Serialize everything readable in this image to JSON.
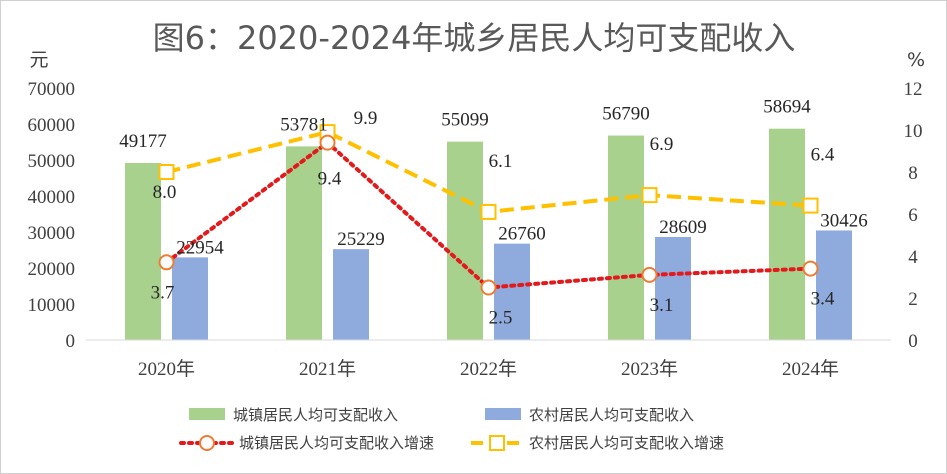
{
  "chart_data": {
    "type": "bar",
    "title": "图6：2020-2024年城乡居民人均可支配收入",
    "categories": [
      "2020年",
      "2021年",
      "2022年",
      "2023年",
      "2024年"
    ],
    "y_left_unit": "元",
    "y_right_unit": "%",
    "y_left_lim": [
      0,
      70000
    ],
    "y_left_ticks": [
      "0",
      "10000",
      "20000",
      "30000",
      "40000",
      "50000",
      "60000",
      "70000"
    ],
    "y_right_lim": [
      0,
      12
    ],
    "y_right_ticks": [
      "0",
      "2",
      "4",
      "6",
      "8",
      "10",
      "12"
    ],
    "grid": false,
    "legend_position": "bottom",
    "series": [
      {
        "name": "城镇居民人均可支配收入",
        "type": "bar",
        "axis": "left",
        "color": "#a9d18e",
        "values": [
          49177,
          53781,
          55099,
          56790,
          58694
        ],
        "labels": [
          "49177",
          "53781",
          "55099",
          "56790",
          "58694"
        ]
      },
      {
        "name": "农村居民人均可支配收入",
        "type": "bar",
        "axis": "left",
        "color": "#8faadc",
        "values": [
          22954,
          25229,
          26760,
          28609,
          30426
        ],
        "labels": [
          "22954",
          "25229",
          "26760",
          "28609",
          "30426"
        ]
      },
      {
        "name": "城镇居民人均可支配收入增速",
        "type": "line",
        "axis": "right",
        "color": "#e31a1c",
        "marker_color": "#ed7d31",
        "marker": "circle",
        "line_style": "dotted",
        "values": [
          3.7,
          9.4,
          2.5,
          3.1,
          3.4
        ],
        "labels": [
          "3.7",
          "9.4",
          "2.5",
          "3.1",
          "3.4"
        ]
      },
      {
        "name": "农村居民人均可支配收入增速",
        "type": "line",
        "axis": "right",
        "color": "#ffc000",
        "marker": "square",
        "line_style": "dashed",
        "values": [
          8.0,
          9.9,
          6.1,
          6.9,
          6.4
        ],
        "labels": [
          "8.0",
          "9.9",
          "6.1",
          "6.9",
          "6.4"
        ]
      }
    ]
  }
}
